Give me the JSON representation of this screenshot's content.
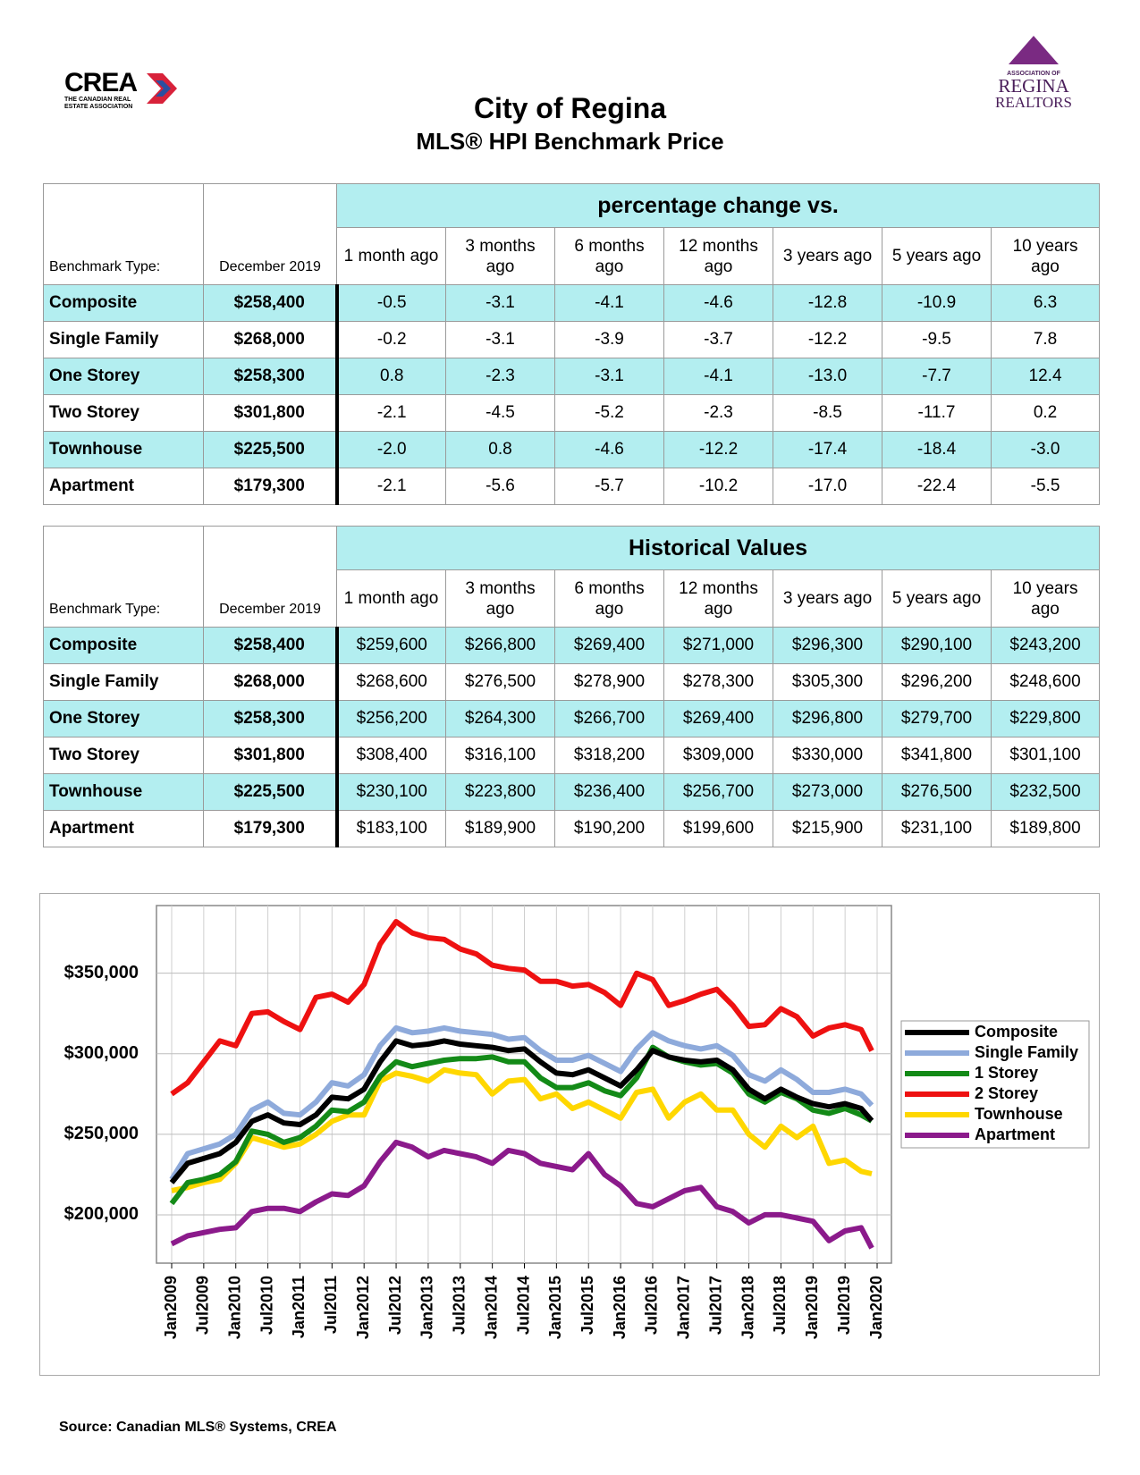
{
  "header": {
    "crea_logo": "CREA",
    "crea_tagline": "THE CANADIAN REAL ESTATE ASSOCIATION",
    "regina_logo_top": "ASSOCIATION OF",
    "regina_logo_name": "REGINA",
    "regina_logo_sub": "REALTORS",
    "title": "City of Regina",
    "subtitle": "MLS® HPI Benchmark Price"
  },
  "tables": [
    {
      "label_header": "Benchmark Type:",
      "date_header": "December 2019",
      "group_header": "percentage change vs.",
      "columns": [
        "1 month ago",
        "3 months ago",
        "6 months ago",
        "12 months ago",
        "3 years ago",
        "5 years ago",
        "10 years ago"
      ],
      "rows": [
        {
          "name": "Composite",
          "price": "$258,400",
          "cells": [
            "-0.5",
            "-3.1",
            "-4.1",
            "-4.6",
            "-12.8",
            "-10.9",
            "6.3"
          ]
        },
        {
          "name": "Single Family",
          "price": "$268,000",
          "cells": [
            "-0.2",
            "-3.1",
            "-3.9",
            "-3.7",
            "-12.2",
            "-9.5",
            "7.8"
          ]
        },
        {
          "name": "One Storey",
          "price": "$258,300",
          "cells": [
            "0.8",
            "-2.3",
            "-3.1",
            "-4.1",
            "-13.0",
            "-7.7",
            "12.4"
          ]
        },
        {
          "name": "Two Storey",
          "price": "$301,800",
          "cells": [
            "-2.1",
            "-4.5",
            "-5.2",
            "-2.3",
            "-8.5",
            "-11.7",
            "0.2"
          ]
        },
        {
          "name": "Townhouse",
          "price": "$225,500",
          "cells": [
            "-2.0",
            "0.8",
            "-4.6",
            "-12.2",
            "-17.4",
            "-18.4",
            "-3.0"
          ]
        },
        {
          "name": "Apartment",
          "price": "$179,300",
          "cells": [
            "-2.1",
            "-5.6",
            "-5.7",
            "-10.2",
            "-17.0",
            "-22.4",
            "-5.5"
          ]
        }
      ]
    },
    {
      "label_header": "Benchmark Type:",
      "date_header": "December 2019",
      "group_header": "Historical Values",
      "columns": [
        "1 month ago",
        "3 months ago",
        "6 months ago",
        "12 months ago",
        "3 years ago",
        "5 years ago",
        "10 years ago"
      ],
      "rows": [
        {
          "name": "Composite",
          "price": "$258,400",
          "cells": [
            "$259,600",
            "$266,800",
            "$269,400",
            "$271,000",
            "$296,300",
            "$290,100",
            "$243,200"
          ]
        },
        {
          "name": "Single Family",
          "price": "$268,000",
          "cells": [
            "$268,600",
            "$276,500",
            "$278,900",
            "$278,300",
            "$305,300",
            "$296,200",
            "$248,600"
          ]
        },
        {
          "name": "One Storey",
          "price": "$258,300",
          "cells": [
            "$256,200",
            "$264,300",
            "$266,700",
            "$269,400",
            "$296,800",
            "$279,700",
            "$229,800"
          ]
        },
        {
          "name": "Two Storey",
          "price": "$301,800",
          "cells": [
            "$308,400",
            "$316,100",
            "$318,200",
            "$309,000",
            "$330,000",
            "$341,800",
            "$301,100"
          ]
        },
        {
          "name": "Townhouse",
          "price": "$225,500",
          "cells": [
            "$230,100",
            "$223,800",
            "$236,400",
            "$256,700",
            "$273,000",
            "$276,500",
            "$232,500"
          ]
        },
        {
          "name": "Apartment",
          "price": "$179,300",
          "cells": [
            "$183,100",
            "$189,900",
            "$190,200",
            "$199,600",
            "$215,900",
            "$231,100",
            "$189,800"
          ]
        }
      ]
    }
  ],
  "chart_data": {
    "type": "line",
    "x": [
      "Jan2009",
      "Apr2009",
      "Jul2009",
      "Oct2009",
      "Jan2010",
      "Apr2010",
      "Jul2010",
      "Oct2010",
      "Jan2011",
      "Apr2011",
      "Jul2011",
      "Oct2011",
      "Jan2012",
      "Apr2012",
      "Jul2012",
      "Oct2012",
      "Jan2013",
      "Apr2013",
      "Jul2013",
      "Oct2013",
      "Jan2014",
      "Apr2014",
      "Jul2014",
      "Oct2014",
      "Jan2015",
      "Apr2015",
      "Jul2015",
      "Oct2015",
      "Jan2016",
      "Apr2016",
      "Jul2016",
      "Oct2016",
      "Jan2017",
      "Apr2017",
      "Jul2017",
      "Oct2017",
      "Jan2018",
      "Apr2018",
      "Jul2018",
      "Oct2018",
      "Jan2019",
      "Apr2019",
      "Jul2019",
      "Oct2019",
      "Dec2019"
    ],
    "xticks": [
      "Jan2009",
      "Jul2009",
      "Jan2010",
      "Jul2010",
      "Jan2011",
      "Jul2011",
      "Jan2012",
      "Jul2012",
      "Jan2013",
      "Jul2013",
      "Jan2014",
      "Jul2014",
      "Jan2015",
      "Jul2015",
      "Jan2016",
      "Jul2016",
      "Jan2017",
      "Jul2017",
      "Jan2018",
      "Jul2018",
      "Jan2019",
      "Jul2019",
      "Jan2020"
    ],
    "ylim": [
      170000,
      392000
    ],
    "yticks": [
      {
        "value": 200000,
        "label": "$200,000"
      },
      {
        "value": 250000,
        "label": "$250,000"
      },
      {
        "value": 300000,
        "label": "$300,000"
      },
      {
        "value": 350000,
        "label": "$350,000"
      }
    ],
    "grid": true,
    "legend": "right",
    "series": [
      {
        "name": "Composite",
        "color": "#000000",
        "values": [
          220000,
          232000,
          235000,
          238000,
          245000,
          258000,
          262000,
          257000,
          256000,
          262000,
          273000,
          272000,
          278000,
          295000,
          308000,
          305000,
          306000,
          308000,
          306000,
          305000,
          304000,
          302000,
          303000,
          295000,
          288000,
          287000,
          290000,
          285000,
          280000,
          290000,
          302000,
          298000,
          296000,
          295000,
          296000,
          290000,
          278000,
          272000,
          278000,
          273000,
          269000,
          267000,
          269000,
          266000,
          258400
        ]
      },
      {
        "name": "Single Family",
        "color": "#8eaadb",
        "values": [
          222000,
          238000,
          241000,
          244000,
          250000,
          265000,
          270000,
          263000,
          262000,
          270000,
          282000,
          280000,
          287000,
          305000,
          316000,
          313000,
          314000,
          316000,
          314000,
          313000,
          312000,
          309000,
          310000,
          302000,
          296000,
          296000,
          299000,
          294000,
          289000,
          303000,
          313000,
          308000,
          305000,
          303000,
          305000,
          299000,
          287000,
          283000,
          290000,
          284000,
          276000,
          276000,
          278000,
          275000,
          268000
        ]
      },
      {
        "name": "1 Storey",
        "color": "#138a17",
        "values": [
          207000,
          220000,
          222000,
          225000,
          233000,
          252000,
          250000,
          245000,
          248000,
          255000,
          265000,
          264000,
          270000,
          286000,
          295000,
          292000,
          294000,
          296000,
          297000,
          297000,
          298000,
          295000,
          295000,
          285000,
          279000,
          279000,
          282000,
          277000,
          274000,
          285000,
          304000,
          298000,
          295000,
          293000,
          294000,
          288000,
          275000,
          270000,
          276000,
          272000,
          265000,
          263000,
          266000,
          262000,
          258300
        ]
      },
      {
        "name": "2 Storey",
        "color": "#ee1111",
        "values": [
          275000,
          282000,
          295000,
          308000,
          305000,
          325000,
          326000,
          320000,
          315000,
          335000,
          337000,
          332000,
          343000,
          368000,
          382000,
          375000,
          372000,
          371000,
          365000,
          362000,
          355000,
          353000,
          352000,
          345000,
          345000,
          342000,
          343000,
          338000,
          330000,
          350000,
          346000,
          330000,
          333000,
          337000,
          340000,
          330000,
          317000,
          318000,
          328000,
          323000,
          311000,
          316000,
          318000,
          315000,
          301800
        ]
      },
      {
        "name": "Townhouse",
        "color": "#ffd700",
        "values": [
          215000,
          217000,
          220000,
          222000,
          232000,
          248000,
          245000,
          242000,
          244000,
          250000,
          258000,
          262000,
          262000,
          283000,
          288000,
          286000,
          283000,
          290000,
          288000,
          287000,
          275000,
          283000,
          284000,
          272000,
          275000,
          266000,
          270000,
          265000,
          260000,
          276000,
          278000,
          260000,
          270000,
          275000,
          265000,
          265000,
          250000,
          242000,
          255000,
          248000,
          255000,
          232000,
          234000,
          227000,
          225500
        ]
      },
      {
        "name": "Apartment",
        "color": "#8b1a8b",
        "values": [
          182000,
          187000,
          189000,
          191000,
          192000,
          202000,
          204000,
          204000,
          202000,
          208000,
          213000,
          212000,
          218000,
          233000,
          245000,
          242000,
          236000,
          240000,
          238000,
          236000,
          232000,
          240000,
          238000,
          232000,
          230000,
          228000,
          238000,
          225000,
          218000,
          207000,
          205000,
          210000,
          215000,
          217000,
          205000,
          202000,
          195000,
          200000,
          200000,
          198000,
          196000,
          184000,
          190000,
          192000,
          179300
        ]
      }
    ]
  },
  "footer": {
    "source": "Source: Canadian MLS® Systems, CREA"
  }
}
